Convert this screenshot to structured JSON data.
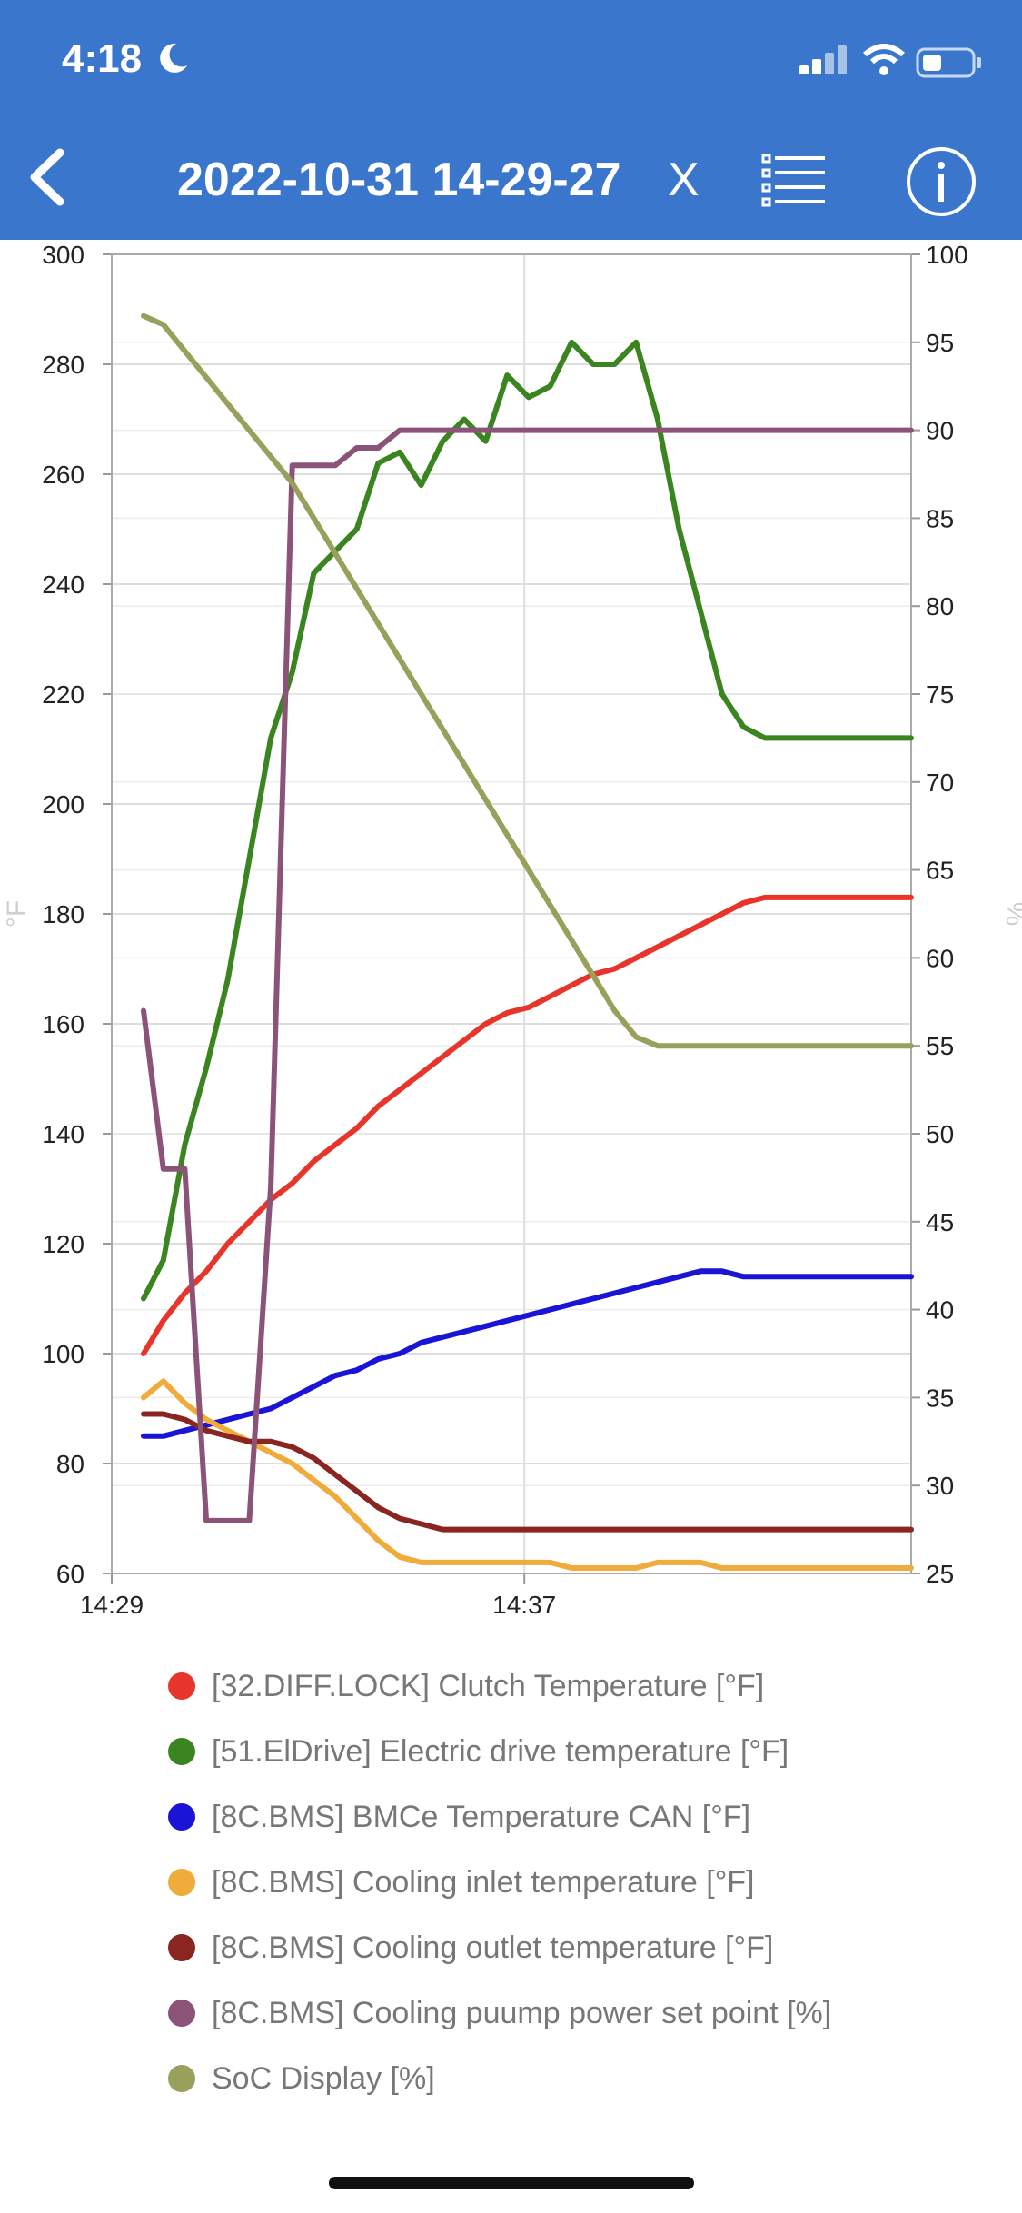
{
  "status": {
    "time": "4:18",
    "moon_icon": "moon-icon",
    "signal_icon": "signal-icon",
    "wifi_icon": "wifi-icon",
    "battery_icon": "battery-icon"
  },
  "header": {
    "title": "2022-10-31 14-29-27",
    "close_label": "X",
    "back_icon": "chevron-left-icon",
    "list_icon": "list-icon",
    "info_icon": "info-icon"
  },
  "colors": {
    "topbar": "#3a77cc"
  },
  "chart_data": {
    "type": "line",
    "grid": true,
    "legend_position": "bottom",
    "x_ticks": [
      "14:29",
      "14:37"
    ],
    "xlim": [
      "14:29",
      "14:44:30"
    ],
    "y_left": {
      "label": "°F",
      "range": [
        60,
        300
      ],
      "ticks": [
        60,
        80,
        100,
        120,
        140,
        160,
        180,
        200,
        220,
        240,
        260,
        280,
        300
      ]
    },
    "y_right": {
      "label": "%",
      "range": [
        25,
        100
      ],
      "ticks": [
        25,
        30,
        35,
        40,
        45,
        50,
        55,
        60,
        65,
        70,
        75,
        80,
        85,
        90,
        95,
        100
      ]
    },
    "x": [
      "14:29:37",
      "14:30:00",
      "14:30:25",
      "14:30:50",
      "14:31:15",
      "14:31:40",
      "14:32:05",
      "14:32:30",
      "14:32:55",
      "14:33:20",
      "14:33:45",
      "14:34:10",
      "14:34:35",
      "14:35:00",
      "14:35:25",
      "14:35:50",
      "14:36:15",
      "14:36:40",
      "14:37:05",
      "14:37:30",
      "14:37:55",
      "14:38:20",
      "14:38:45",
      "14:39:10",
      "14:39:35",
      "14:40:00",
      "14:40:25",
      "14:40:50",
      "14:41:15",
      "14:41:40",
      "14:42:05",
      "14:42:30",
      "14:42:55",
      "14:43:20",
      "14:43:45",
      "14:44:10",
      "14:44:30"
    ],
    "series": [
      {
        "name": "[32.DIFF.LOCK] Clutch Temperature [°F]",
        "color": "#e8352b",
        "axis": "left",
        "values": [
          100,
          106,
          111,
          115,
          120,
          124,
          128,
          131,
          135,
          138,
          141,
          145,
          148,
          151,
          154,
          157,
          160,
          162,
          163,
          165,
          167,
          169,
          170,
          172,
          174,
          176,
          178,
          180,
          182,
          183,
          183,
          183,
          183,
          183,
          183,
          183,
          183
        ]
      },
      {
        "name": "[51.ElDrive] Electric drive temperature [°F]",
        "color": "#3b8521",
        "axis": "left",
        "values": [
          110,
          117,
          138,
          152,
          168,
          190,
          212,
          224,
          242,
          246,
          250,
          262,
          264,
          258,
          266,
          270,
          266,
          278,
          274,
          276,
          284,
          280,
          280,
          284,
          270,
          250,
          235,
          220,
          214,
          212,
          212,
          212,
          212,
          212,
          212,
          212,
          212
        ]
      },
      {
        "name": "[8C.BMS] BMCe Temperature CAN [°F]",
        "color": "#1a14d6",
        "axis": "left",
        "values": [
          85,
          85,
          86,
          87,
          88,
          89,
          90,
          92,
          94,
          96,
          97,
          99,
          100,
          102,
          103,
          104,
          105,
          106,
          107,
          108,
          109,
          110,
          111,
          112,
          113,
          114,
          115,
          115,
          114,
          114,
          114,
          114,
          114,
          114,
          114,
          114,
          114
        ]
      },
      {
        "name": "[8C.BMS] Cooling inlet temperature [°F]",
        "color": "#f0ab3a",
        "axis": "left",
        "values": [
          92,
          95,
          91,
          88,
          86,
          84,
          82,
          80,
          77,
          74,
          70,
          66,
          63,
          62,
          62,
          62,
          62,
          62,
          62,
          62,
          61,
          61,
          61,
          61,
          62,
          62,
          62,
          61,
          61,
          61,
          61,
          61,
          61,
          61,
          61,
          61,
          61
        ]
      },
      {
        "name": "[8C.BMS] Cooling outlet temperature [°F]",
        "color": "#8a2520",
        "axis": "left",
        "values": [
          89,
          89,
          88,
          86,
          85,
          84,
          84,
          83,
          81,
          78,
          75,
          72,
          70,
          69,
          68,
          68,
          68,
          68,
          68,
          68,
          68,
          68,
          68,
          68,
          68,
          68,
          68,
          68,
          68,
          68,
          68,
          68,
          68,
          68,
          68,
          68,
          68
        ]
      },
      {
        "name": "[8C.BMS] Cooling puump power set point [%]",
        "color": "#8c5378",
        "axis": "right",
        "values": [
          57,
          48,
          48,
          28,
          28,
          28,
          47,
          88,
          88,
          88,
          89,
          89,
          90,
          90,
          90,
          90,
          90,
          90,
          90,
          90,
          90,
          90,
          90,
          90,
          90,
          90,
          90,
          90,
          90,
          90,
          90,
          90,
          90,
          90,
          90,
          90,
          90
        ]
      },
      {
        "name": "SoC Display [%]",
        "color": "#98a05c",
        "axis": "right",
        "values": [
          96.5,
          96,
          94.5,
          93,
          91.5,
          90,
          88.5,
          87,
          85,
          83,
          81,
          79,
          77,
          75,
          73,
          71,
          69,
          67,
          65,
          63,
          61,
          59,
          57,
          55.5,
          55,
          55,
          55,
          55,
          55,
          55,
          55,
          55,
          55,
          55,
          55,
          55,
          55
        ]
      }
    ]
  }
}
